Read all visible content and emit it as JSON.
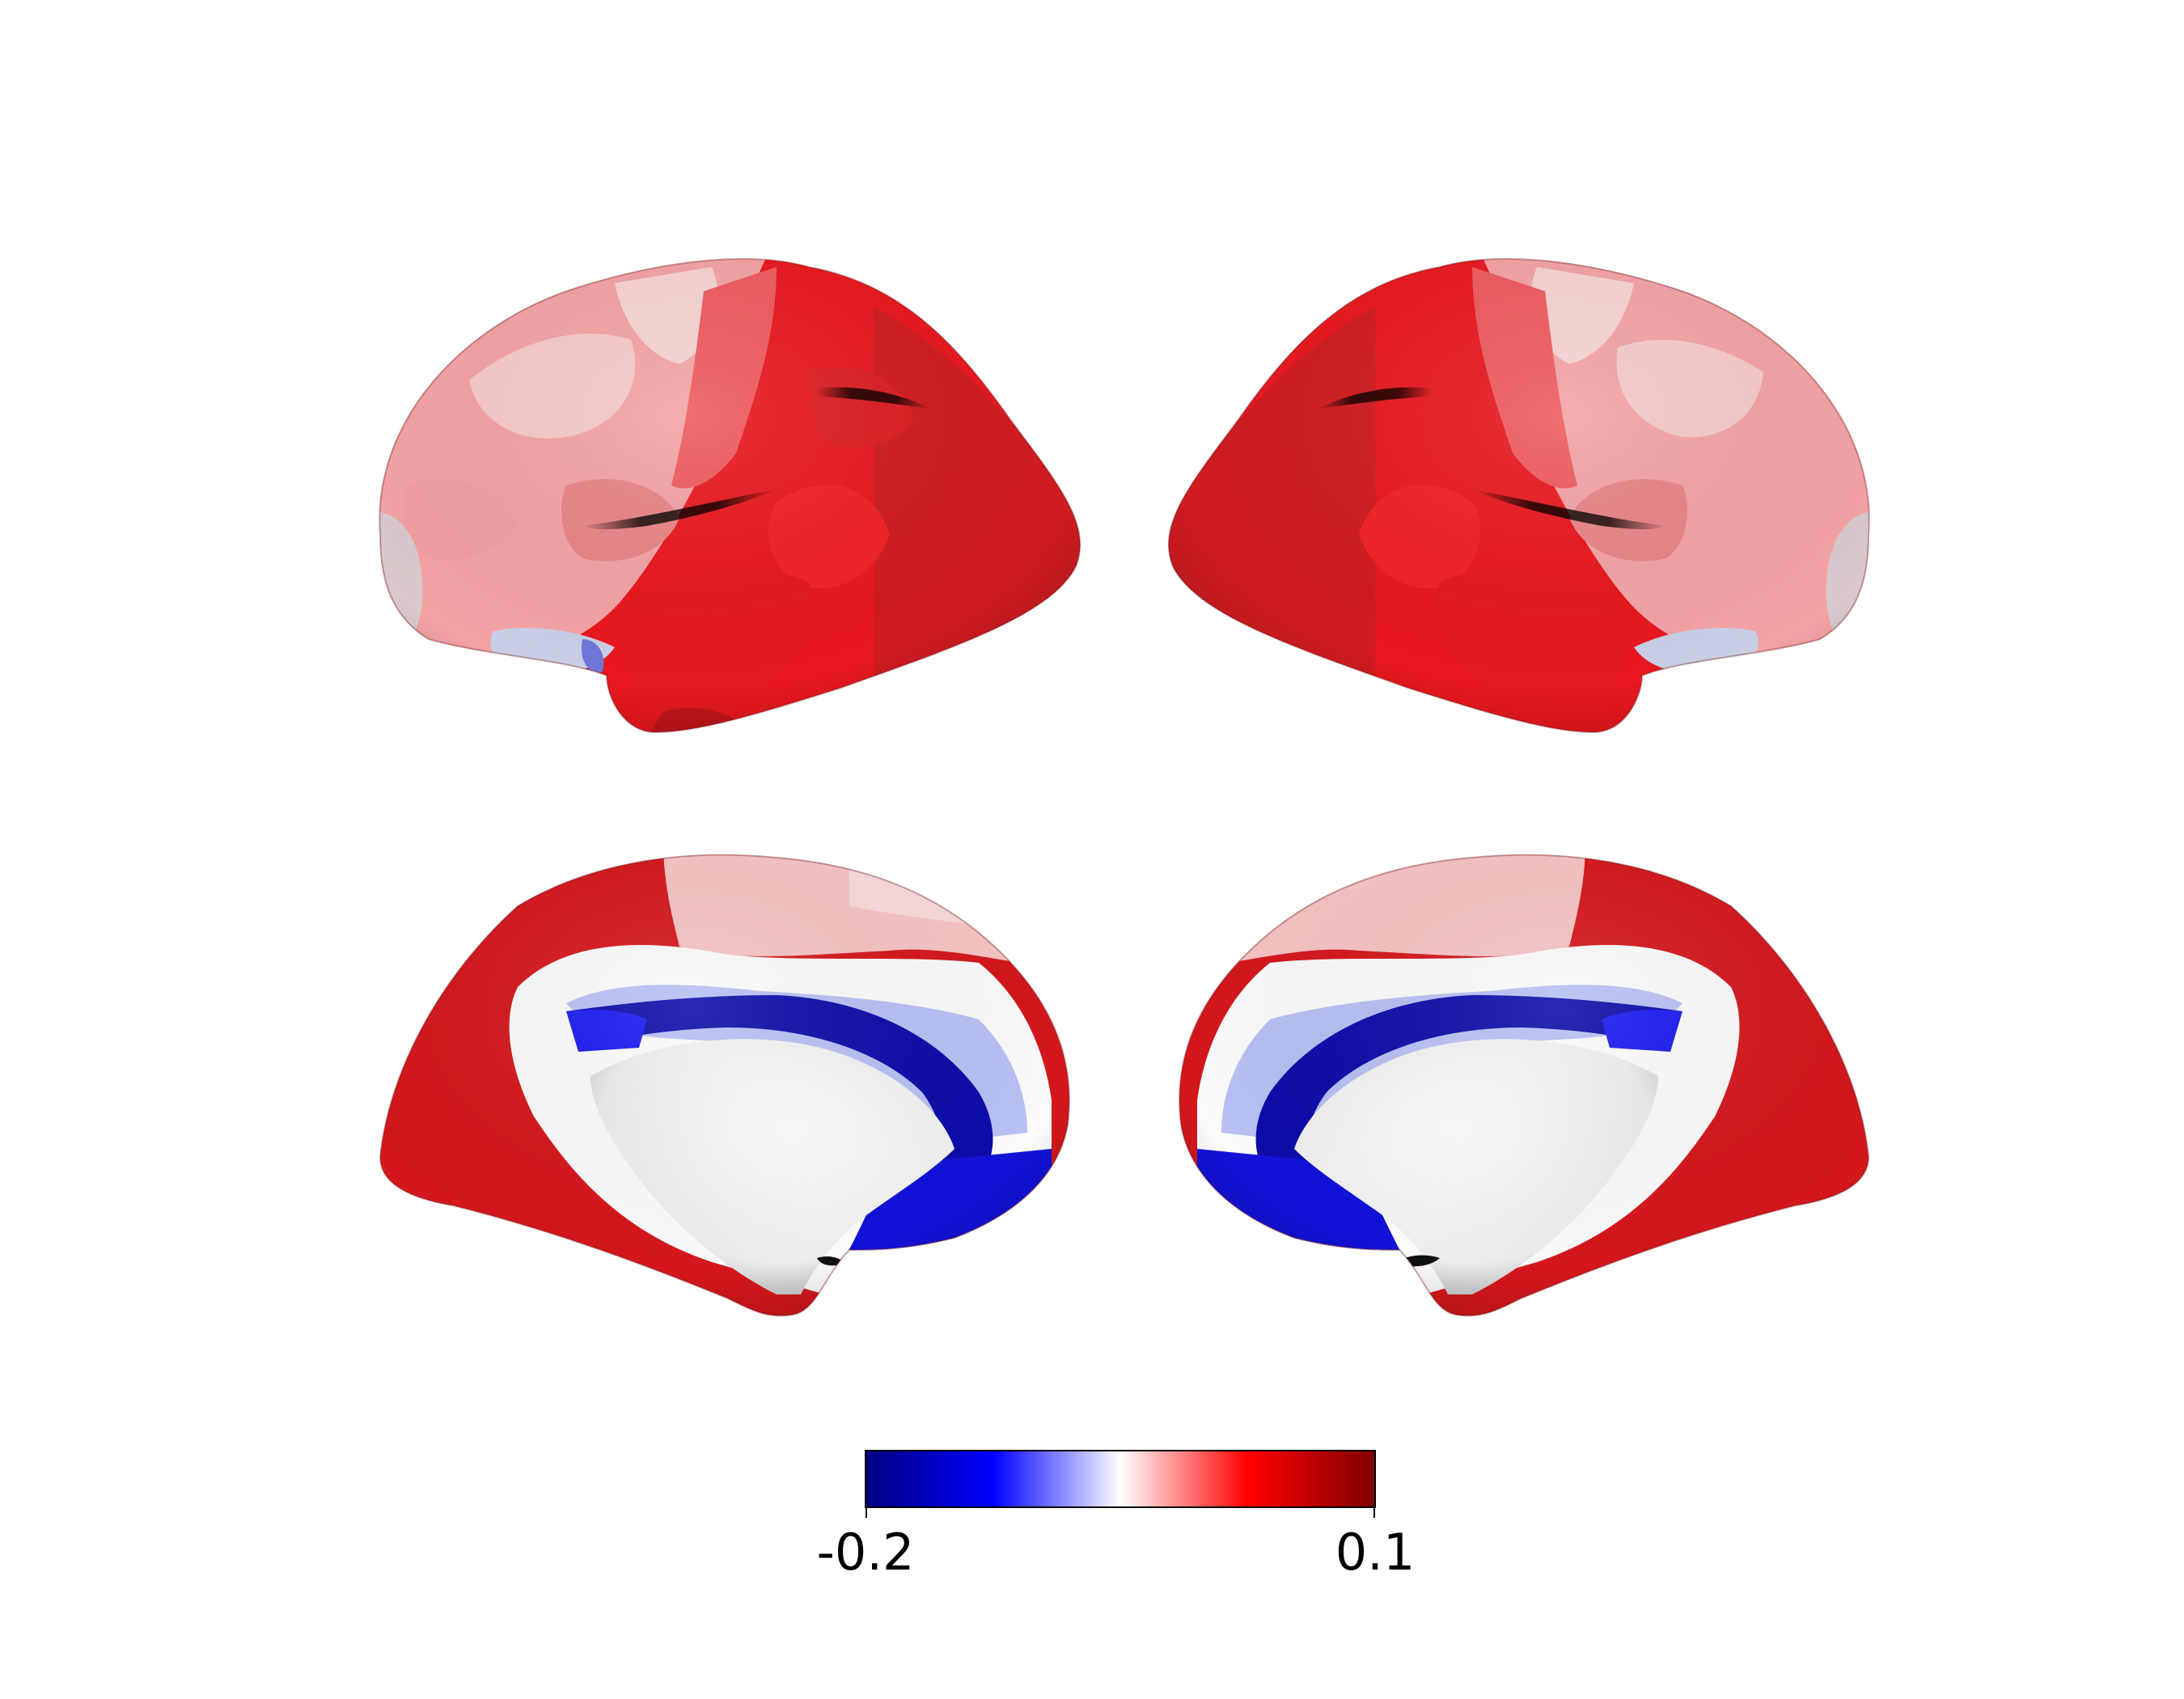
{
  "colorbar": {
    "min_label": "-0.2",
    "max_label": "0.1",
    "min": -0.2,
    "max": 0.1,
    "colors": [
      "#00007f",
      "#0000ff",
      "#ffffff",
      "#ff0000",
      "#7f0000"
    ]
  },
  "palette": {
    "dark_red": "#c8141a",
    "red": "#e8181e",
    "light_red": "#f4a3a5",
    "pale_red": "#f6c9ca",
    "white": "#f7f7f7",
    "light_blue": "#b8c0f4",
    "blue": "#1a1af0",
    "dark_blue": "#0a0a9c"
  },
  "views": [
    {
      "id": "left-lateral",
      "hemisphere": "left",
      "view": "lateral"
    },
    {
      "id": "right-lateral",
      "hemisphere": "right",
      "view": "lateral"
    },
    {
      "id": "left-medial",
      "hemisphere": "left",
      "view": "medial"
    },
    {
      "id": "right-medial",
      "hemisphere": "right",
      "view": "medial"
    }
  ]
}
